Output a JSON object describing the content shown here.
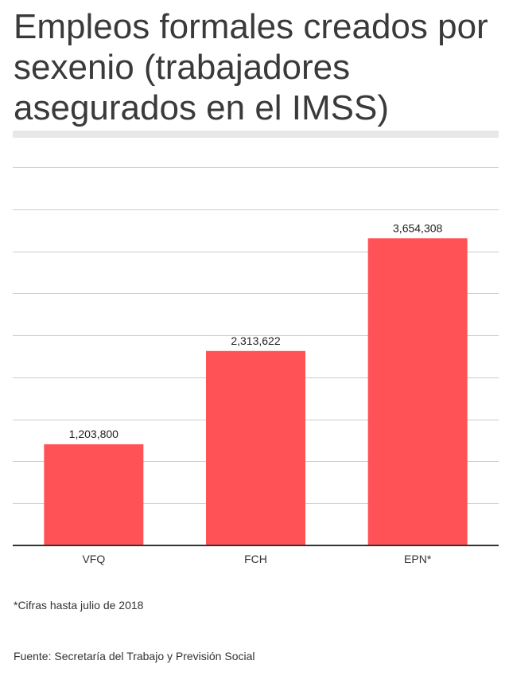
{
  "chart_data": {
    "type": "bar",
    "title": "Empleos formales creados por sexenio (trabajadores asegurados en el IMSS)",
    "categories": [
      "VFQ",
      "FCH",
      "EPN*"
    ],
    "values": [
      1203800,
      2313622,
      3654308
    ],
    "value_labels": [
      "1,203,800",
      "2,313,622",
      "3,654,308"
    ],
    "ylim": [
      0,
      4500000
    ],
    "gridline_step": 500000,
    "xlabel": "",
    "ylabel": "",
    "grid": true,
    "legend": "none",
    "bar_color": "#ff5257"
  },
  "footnote": "*Cifras hasta julio de 2018",
  "source": "Fuente: Secretaría del Trabajo y Previsión Social"
}
